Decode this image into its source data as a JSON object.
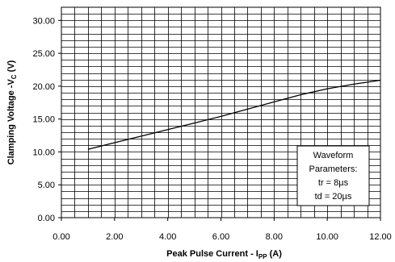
{
  "chart_data": {
    "type": "line",
    "title": "",
    "xlabel_main": "Peak Pulse Current - I",
    "xlabel_sub": "PP",
    "xlabel_end": " (A)",
    "ylabel_main": "Clamping Voltage -V",
    "ylabel_sub": "C",
    "ylabel_end": " (V)",
    "xlim": [
      0,
      12
    ],
    "ylim": [
      0,
      32
    ],
    "x_ticks": [
      0,
      2,
      4,
      6,
      8,
      10,
      12
    ],
    "x_tick_labels": [
      "0.00",
      "2.00",
      "4.00",
      "6.00",
      "8.00",
      "10.00",
      "12.00"
    ],
    "y_ticks": [
      0,
      5,
      10,
      15,
      20,
      25,
      30
    ],
    "y_tick_labels": [
      "0.00",
      "5.00",
      "10.00",
      "15.00",
      "20.00",
      "25.00",
      "30.00"
    ],
    "grid": true,
    "x_grid_step": 0.5,
    "y_grid_step": 1,
    "series": [
      {
        "x": [
          1.0,
          2.0,
          3.0,
          4.0,
          5.0,
          6.0,
          7.0,
          8.0,
          9.0,
          10.0,
          11.0,
          12.0
        ],
        "y": [
          10.4,
          11.4,
          12.4,
          13.4,
          14.4,
          15.4,
          16.5,
          17.6,
          18.7,
          19.6,
          20.3,
          20.9
        ]
      }
    ],
    "annotation": {
      "lines": [
        "Waveform",
        "Parameters:",
        "tr = 8µs",
        "td = 20µs"
      ],
      "placement": "bottom-right"
    },
    "colors": {
      "line": "#000000",
      "grid": "#000000",
      "background": "#ffffff"
    }
  }
}
